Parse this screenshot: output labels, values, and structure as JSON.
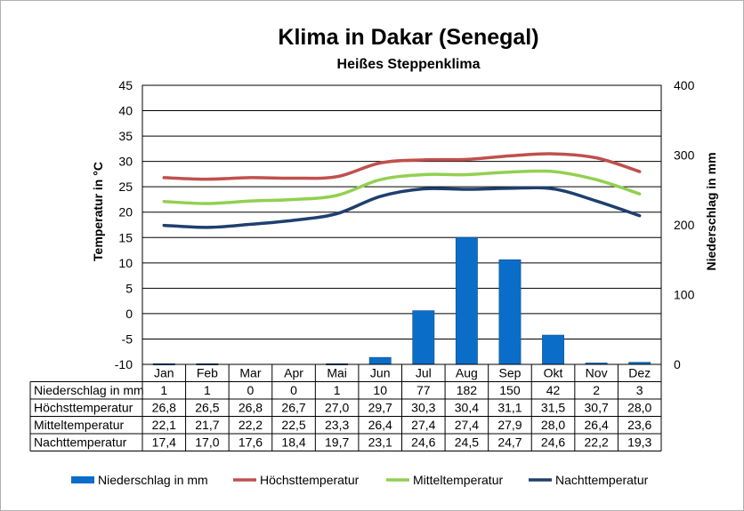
{
  "chart_data": {
    "type": "bar",
    "title": "Klima in Dakar (Senegal)",
    "subtitle": "Heißes Steppenklima",
    "ylabel_left": "Temperatur in °C",
    "ylabel_right": "Niederschlag in mm",
    "categories": [
      "Jan",
      "Feb",
      "Mar",
      "Apr",
      "Mai",
      "Jun",
      "Jul",
      "Aug",
      "Sep",
      "Okt",
      "Nov",
      "Dez"
    ],
    "ylim_left": [
      -10,
      45
    ],
    "yticks_left": [
      -10,
      -5,
      0,
      5,
      10,
      15,
      20,
      25,
      30,
      35,
      40,
      45
    ],
    "ylim_right": [
      0,
      400
    ],
    "yticks_right": [
      0,
      100,
      200,
      300,
      400
    ],
    "grid": true,
    "legend_position": "bottom",
    "series": [
      {
        "name": "Niederschlag in mm",
        "type": "bar",
        "axis": "right",
        "color": "#0a6ec8",
        "labels": [
          "1",
          "1",
          "0",
          "0",
          "1",
          "10",
          "77",
          "182",
          "150",
          "42",
          "2",
          "3"
        ],
        "values": [
          1,
          1,
          0,
          0,
          1,
          10,
          77,
          182,
          150,
          42,
          2,
          3
        ]
      },
      {
        "name": "Höchsttemperatur",
        "type": "line",
        "axis": "left",
        "color": "#c0504d",
        "labels": [
          "26,8",
          "26,5",
          "26,8",
          "26,7",
          "27,0",
          "29,7",
          "30,3",
          "30,4",
          "31,1",
          "31,5",
          "30,7",
          "28,0"
        ],
        "values": [
          26.8,
          26.5,
          26.8,
          26.7,
          27.0,
          29.7,
          30.3,
          30.4,
          31.1,
          31.5,
          30.7,
          28.0
        ]
      },
      {
        "name": "Mitteltemperatur",
        "type": "line",
        "axis": "left",
        "color": "#92d050",
        "labels": [
          "22,1",
          "21,7",
          "22,2",
          "22,5",
          "23,3",
          "26,4",
          "27,4",
          "27,4",
          "27,9",
          "28,0",
          "26,4",
          "23,6"
        ],
        "values": [
          22.1,
          21.7,
          22.2,
          22.5,
          23.3,
          26.4,
          27.4,
          27.4,
          27.9,
          28.0,
          26.4,
          23.6
        ]
      },
      {
        "name": "Nachttemperatur",
        "type": "line",
        "axis": "left",
        "color": "#1f3f6e",
        "labels": [
          "17,4",
          "17,0",
          "17,6",
          "18,4",
          "19,7",
          "23,1",
          "24,6",
          "24,5",
          "24,7",
          "24,6",
          "22,2",
          "19,3"
        ],
        "values": [
          17.4,
          17.0,
          17.6,
          18.4,
          19.7,
          23.1,
          24.6,
          24.5,
          24.7,
          24.6,
          22.2,
          19.3
        ]
      }
    ]
  }
}
